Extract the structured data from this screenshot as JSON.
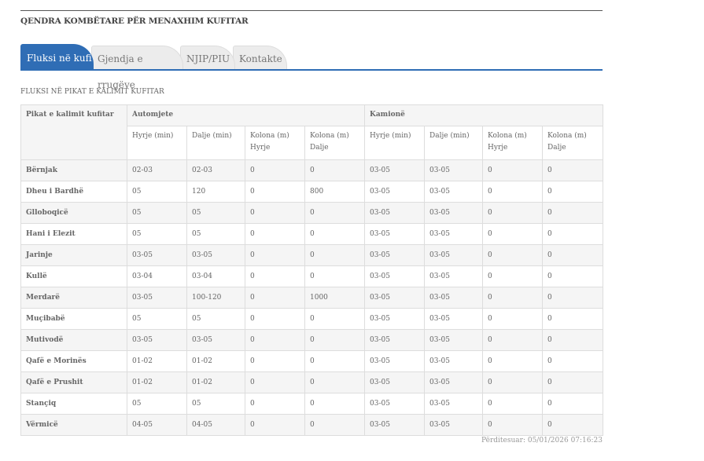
{
  "header": {
    "title": "QENDRA KOMBËTARE PËR MENAXHIM KUFITAR"
  },
  "tabs": [
    {
      "label": "Fluksi në kufi",
      "active": true
    },
    {
      "label": "Gjendja e rrugëve",
      "active": false
    },
    {
      "label": "NJIP/PIU",
      "active": false
    },
    {
      "label": "Kontakte",
      "active": false
    }
  ],
  "section": {
    "caption": "FLUKSI NË PIKAT E KALIMIT KUFITAR"
  },
  "table": {
    "col_point": "Pikat e kalimit kufitar",
    "group_cars": "Automjete",
    "group_trucks": "Kamionë",
    "sub": [
      "Hyrje (min)",
      "Dalje (min)",
      "Kolona (m) Hyrje",
      "Kolona (m) Dalje"
    ],
    "rows": [
      [
        "Bërnjak",
        "02-03",
        "02-03",
        "0",
        "0",
        "03-05",
        "03-05",
        "0",
        "0"
      ],
      [
        "Dheu i Bardhë",
        "05",
        "120",
        "0",
        "800",
        "03-05",
        "03-05",
        "0",
        "0"
      ],
      [
        "Glloboqicë",
        "05",
        "05",
        "0",
        "0",
        "03-05",
        "03-05",
        "0",
        "0"
      ],
      [
        "Hani i Elezit",
        "05",
        "05",
        "0",
        "0",
        "03-05",
        "03-05",
        "0",
        "0"
      ],
      [
        "Jarinje",
        "03-05",
        "03-05",
        "0",
        "0",
        "03-05",
        "03-05",
        "0",
        "0"
      ],
      [
        "Kullë",
        "03-04",
        "03-04",
        "0",
        "0",
        "03-05",
        "03-05",
        "0",
        "0"
      ],
      [
        "Merdarë",
        "03-05",
        "100-120",
        "0",
        "1000",
        "03-05",
        "03-05",
        "0",
        "0"
      ],
      [
        "Muçibabë",
        "05",
        "05",
        "0",
        "0",
        "03-05",
        "03-05",
        "0",
        "0"
      ],
      [
        "Mutivodë",
        "03-05",
        "03-05",
        "0",
        "0",
        "03-05",
        "03-05",
        "0",
        "0"
      ],
      [
        "Qafë e Morinës",
        "01-02",
        "01-02",
        "0",
        "0",
        "03-05",
        "03-05",
        "0",
        "0"
      ],
      [
        "Qafë e Prushit",
        "01-02",
        "01-02",
        "0",
        "0",
        "03-05",
        "03-05",
        "0",
        "0"
      ],
      [
        "Stançiq",
        "05",
        "05",
        "0",
        "0",
        "03-05",
        "03-05",
        "0",
        "0"
      ],
      [
        "Vërmicë",
        "04-05",
        "04-05",
        "0",
        "0",
        "03-05",
        "03-05",
        "0",
        "0"
      ]
    ]
  },
  "footer": {
    "updated": "Përditesuar: 05/01/2026 07:16:23"
  },
  "colors": {
    "accent": "#2f6db5"
  }
}
